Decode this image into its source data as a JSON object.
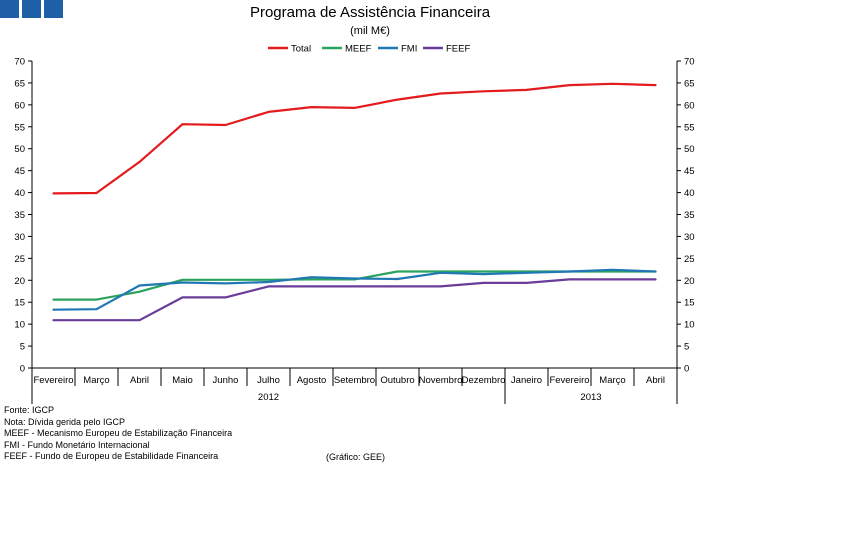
{
  "chart_data": {
    "type": "line",
    "title": "Programa de Assistência Financeira",
    "subtitle": "(mil M€)",
    "categories": [
      "Fevereiro",
      "Março",
      "Abril",
      "Maio",
      "Junho",
      "Julho",
      "Agosto",
      "Setembro",
      "Outubro",
      "Novembro",
      "Dezembro",
      "Janeiro",
      "Fevereiro",
      "Março",
      "Abril"
    ],
    "year_groups": [
      {
        "label": "2012",
        "start": 0,
        "end": 10
      },
      {
        "label": "2013",
        "start": 11,
        "end": 14
      }
    ],
    "ylim": [
      0,
      70
    ],
    "yticks": [
      "0",
      "5",
      "10",
      "15",
      "20",
      "25",
      "30",
      "35",
      "40",
      "45",
      "50",
      "55",
      "60",
      "65",
      "70"
    ],
    "legend_position": "top-center",
    "grid": false,
    "series": [
      {
        "name": "Total",
        "color": "#e41a1c",
        "values": [
          39.8,
          39.9,
          47.0,
          55.6,
          55.4,
          58.4,
          59.5,
          59.3,
          61.2,
          62.6,
          63.1,
          63.4,
          64.5,
          64.8,
          64.5
        ]
      },
      {
        "name": "MEEF",
        "color": "#2ca25f",
        "values": [
          15.6,
          15.6,
          17.4,
          20.1,
          20.1,
          20.1,
          20.2,
          20.2,
          22.0,
          22.0,
          22.0,
          22.0,
          22.0,
          22.0,
          22.0
        ]
      },
      {
        "name": "FMI",
        "color": "#1f78b4",
        "values": [
          13.3,
          13.4,
          18.8,
          19.5,
          19.3,
          19.6,
          20.7,
          20.4,
          20.3,
          21.7,
          21.4,
          21.7,
          22.0,
          22.4,
          22.0
        ]
      },
      {
        "name": "FEEF",
        "color": "#6a3d9a",
        "values": [
          10.9,
          10.9,
          10.9,
          16.1,
          16.1,
          18.6,
          18.6,
          18.6,
          18.6,
          18.6,
          19.4,
          19.4,
          20.2,
          20.2,
          20.2
        ]
      }
    ]
  },
  "notes": [
    "Fonte: IGCP",
    "Nota: Dívida gerida pelo IGCP",
    "MEEF - Mecanismo Europeu de Estabilização Financeira",
    "FMI - Fundo Monetário Internacional",
    "FEEF - Fundo de Europeu de Estabilidade Financeira"
  ],
  "credit": "(Gráfico: GEE)",
  "logo_color": "#1f5fa8"
}
